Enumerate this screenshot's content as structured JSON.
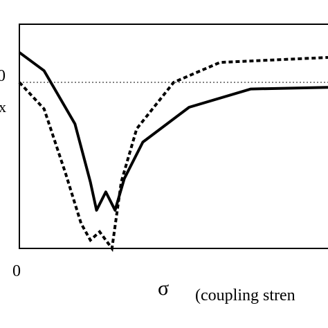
{
  "chart_data": {
    "type": "line",
    "xlabel_symbol": "σ",
    "xlabel_text": "(coupling stren",
    "x_tick_label": "0",
    "y_tick_label": "0",
    "y_partial_label": "x",
    "grid": false,
    "reference_line": {
      "style": "dotted",
      "y": 0
    },
    "series": [
      {
        "style": "solid",
        "points": [
          [
            0,
            0.18
          ],
          [
            0.08,
            0.07
          ],
          [
            0.18,
            -0.25
          ],
          [
            0.23,
            -0.6
          ],
          [
            0.25,
            -0.77
          ],
          [
            0.28,
            -0.66
          ],
          [
            0.31,
            -0.77
          ],
          [
            0.34,
            -0.58
          ],
          [
            0.4,
            -0.36
          ],
          [
            0.55,
            -0.15
          ],
          [
            0.75,
            -0.04
          ],
          [
            1.0,
            -0.03
          ]
        ]
      },
      {
        "style": "dotted",
        "points": [
          [
            0,
            0.0
          ],
          [
            0.08,
            -0.16
          ],
          [
            0.15,
            -0.55
          ],
          [
            0.2,
            -0.85
          ],
          [
            0.23,
            -0.95
          ],
          [
            0.26,
            -0.9
          ],
          [
            0.3,
            -1.0
          ],
          [
            0.33,
            -0.6
          ],
          [
            0.38,
            -0.28
          ],
          [
            0.5,
            0.0
          ],
          [
            0.65,
            0.12
          ],
          [
            1.0,
            0.15
          ]
        ]
      }
    ]
  }
}
